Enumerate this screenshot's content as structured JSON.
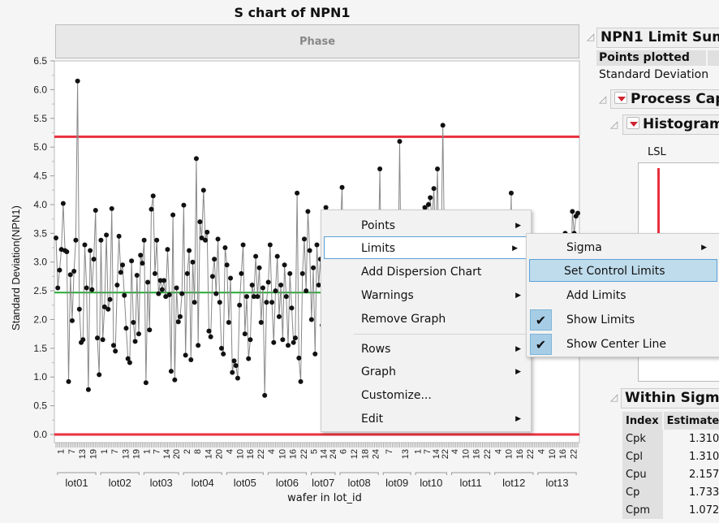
{
  "title": "S chart of NPN1",
  "phase_label": "Phase",
  "chart_data": {
    "type": "line",
    "title": "S chart of NPN1",
    "ylabel": "Standard Deviation(NPN1)",
    "xlabel": "wafer in lot_id",
    "ylim": [
      0,
      6.5
    ],
    "yticks": [
      "0.0",
      "0.5",
      "1.0",
      "1.5",
      "2.0",
      "2.5",
      "3.0",
      "3.5",
      "4.0",
      "4.5",
      "5.0",
      "5.5",
      "6.0",
      "6.5"
    ],
    "ucl": 5.18,
    "center": 2.47,
    "lcl": 0,
    "colors": {
      "limit": "#e8303f",
      "center": "#22aa33",
      "line": "#888888",
      "point": "#111111"
    },
    "lots": [
      {
        "name": "lot01",
        "ticks": [
          "1",
          "7",
          "13",
          "19"
        ],
        "values": [
          3.42,
          2.55,
          2.86,
          3.22,
          4.02,
          3.2,
          3.18,
          0.92,
          2.78,
          1.98,
          2.84,
          3.38,
          6.15,
          2.18,
          1.6,
          1.65,
          3.3,
          2.55,
          0.78,
          3.2,
          2.52,
          3.05,
          3.9,
          1.68
        ]
      },
      {
        "name": "lot02",
        "ticks": [
          "1",
          "7",
          "13",
          "19"
        ],
        "values": [
          1.04,
          3.38,
          1.65,
          2.22,
          3.47,
          2.18,
          2.35,
          3.93,
          1.55,
          1.45,
          2.6,
          3.45,
          2.82,
          2.95,
          2.42,
          1.85,
          1.32,
          1.25,
          3.02,
          1.95,
          1.62,
          2.77,
          1.75,
          3.12
        ]
      },
      {
        "name": "lot03",
        "ticks": [
          "1",
          "7",
          "14",
          "20"
        ],
        "values": [
          2.98,
          3.38,
          0.9,
          2.65,
          1.82,
          3.92,
          4.15,
          2.8,
          3.38,
          2.45,
          2.68,
          2.52,
          2.68,
          2.4,
          3.22,
          2.43,
          1.1,
          3.82,
          0.95,
          2.55,
          1.96,
          2.05
        ]
      },
      {
        "name": "lot04",
        "ticks": [
          "2",
          "8",
          "14",
          "20"
        ],
        "values": [
          2.45,
          3.99,
          1.38,
          2.8,
          3.2,
          1.3,
          3.0,
          2.3,
          4.8,
          1.55,
          3.7,
          3.42,
          4.25,
          3.38,
          3.52,
          1.8,
          1.7,
          2.75,
          3.05,
          2.45,
          3.4,
          2.3,
          1.5,
          1.4
        ]
      },
      {
        "name": "lot05",
        "ticks": [
          "4",
          "10",
          "16",
          "22"
        ],
        "values": [
          3.25,
          2.95,
          1.95,
          2.72,
          1.08,
          1.28,
          1.2,
          0.98,
          2.25,
          2.8,
          3.3,
          1.75,
          2.4,
          1.32,
          1.65,
          2.6,
          2.4,
          3.1,
          2.4,
          2.9,
          1.95,
          2.55,
          0.68
        ]
      },
      {
        "name": "lot06",
        "ticks": [
          "4",
          "10",
          "16",
          "22"
        ],
        "values": [
          2.3,
          2.65,
          3.3,
          2.3,
          1.6,
          2.5,
          3.1,
          2.05,
          2.6,
          1.65,
          2.95,
          2.4,
          1.55,
          2.8,
          2.2,
          1.6,
          1.68,
          4.2,
          1.33,
          0.92,
          2.8,
          3.4,
          2.5,
          3.88
        ]
      },
      {
        "name": "lot07",
        "ticks": [
          "5",
          "14",
          "24"
        ],
        "values": [
          3.2,
          2.0,
          2.9,
          1.4,
          3.3,
          2.6,
          3.05,
          1.9,
          2.5,
          3.95,
          2.2,
          1.7,
          3.0,
          2.4,
          2.1,
          3.5
        ]
      },
      {
        "name": "lot08",
        "ticks": [
          "6",
          "12",
          "18",
          "24"
        ],
        "values": [
          2.7,
          3.5,
          4.3,
          1.8,
          2.6,
          3.2,
          2.2,
          1.5,
          3.1,
          2.8,
          2.0,
          3.6,
          2.4,
          1.9,
          2.9,
          3.3,
          2.1,
          2.6,
          3.0,
          1.7,
          2.5,
          3.2,
          2.8,
          4.62
        ]
      },
      {
        "name": "lot09",
        "ticks": [
          "7",
          "13"
        ],
        "values": [
          2.3,
          3.1,
          1.9,
          2.7,
          3.4,
          2.2,
          1.6,
          2.9,
          3.0,
          2.5,
          5.1,
          2.1,
          2.8,
          3.3,
          1.8,
          2.6,
          3.0,
          2.4
        ]
      },
      {
        "name": "lot10",
        "ticks": [
          "1",
          "7",
          "14",
          "22"
        ],
        "values": [
          2.7,
          1.9,
          3.2,
          2.5,
          3.6,
          2.2,
          3.95,
          3.8,
          4.0,
          4.12,
          3.7,
          4.28,
          3.3,
          4.62,
          2.6,
          3.1,
          5.38,
          2.9,
          2.2,
          3.4
        ]
      },
      {
        "name": "lot11",
        "ticks": [
          "4",
          "10",
          "16",
          "22"
        ],
        "values": [
          2.5,
          3.0,
          1.8,
          2.7,
          3.3,
          2.1,
          2.9,
          3.5,
          2.4,
          1.9,
          3.1,
          2.6,
          2.2,
          3.4,
          2.8,
          1.7,
          2.5,
          3.2,
          2.0,
          2.7,
          3.0,
          2.3,
          1.6,
          2.9
        ]
      },
      {
        "name": "lot12",
        "ticks": [
          "4",
          "10",
          "16",
          "22"
        ],
        "values": [
          3.1,
          2.4,
          2.0,
          2.8,
          3.3,
          2.2,
          1.8,
          2.6,
          3.0,
          2.5,
          4.2,
          1.3,
          1.08,
          2.7,
          3.2,
          2.1,
          1.5,
          2.9,
          1.28,
          3.55,
          2.4,
          3.1,
          2.6,
          1.9
        ]
      },
      {
        "name": "lot13",
        "ticks": [
          "4",
          "10",
          "16",
          "22"
        ],
        "values": [
          2.8,
          3.3,
          2.2,
          3.0,
          2.5,
          1.8,
          2.7,
          3.4,
          2.3,
          2.9,
          3.1,
          2.0,
          2.6,
          3.2,
          2.4,
          2.8,
          3.5,
          2.1,
          3.0,
          2.6,
          3.88,
          3.5,
          3.8,
          3.85
        ]
      }
    ]
  },
  "context_menu": {
    "items": [
      {
        "label": "Points",
        "submenu": true
      },
      {
        "label": "Limits",
        "submenu": true,
        "highlighted": true
      },
      {
        "label": "Add Dispersion Chart"
      },
      {
        "label": "Warnings",
        "submenu": true
      },
      {
        "label": "Remove Graph"
      },
      {
        "label": "Rows",
        "submenu": true
      },
      {
        "label": "Graph",
        "submenu": true
      },
      {
        "label": "Customize..."
      },
      {
        "label": "Edit",
        "submenu": true
      }
    ]
  },
  "limits_submenu": {
    "items": [
      {
        "label": "Sigma",
        "submenu": true
      },
      {
        "label": "Set Control Limits",
        "highlighted": true
      },
      {
        "label": "Add Limits"
      },
      {
        "label": "Show Limits",
        "checked": true
      },
      {
        "label": "Show Center Line",
        "checked": true
      }
    ]
  },
  "right_panel": {
    "limit_summary_title": "NPN1 Limit Summ",
    "points_plotted_header": "Points plotted",
    "points_plotted_value": "Standard Deviation",
    "process_capability_title": "Process Capa",
    "histogram_title": "Histogram",
    "lsl_label": "LSL",
    "within_sigma_title": "Within Sigma",
    "table": {
      "headers": [
        "Index",
        "Estimate"
      ],
      "rows": [
        [
          "Cpk",
          "1.310"
        ],
        [
          "Cpl",
          "1.310"
        ],
        [
          "Cpu",
          "2.157"
        ],
        [
          "Cp",
          "1.733"
        ],
        [
          "Cpm",
          "1.072"
        ]
      ]
    }
  }
}
